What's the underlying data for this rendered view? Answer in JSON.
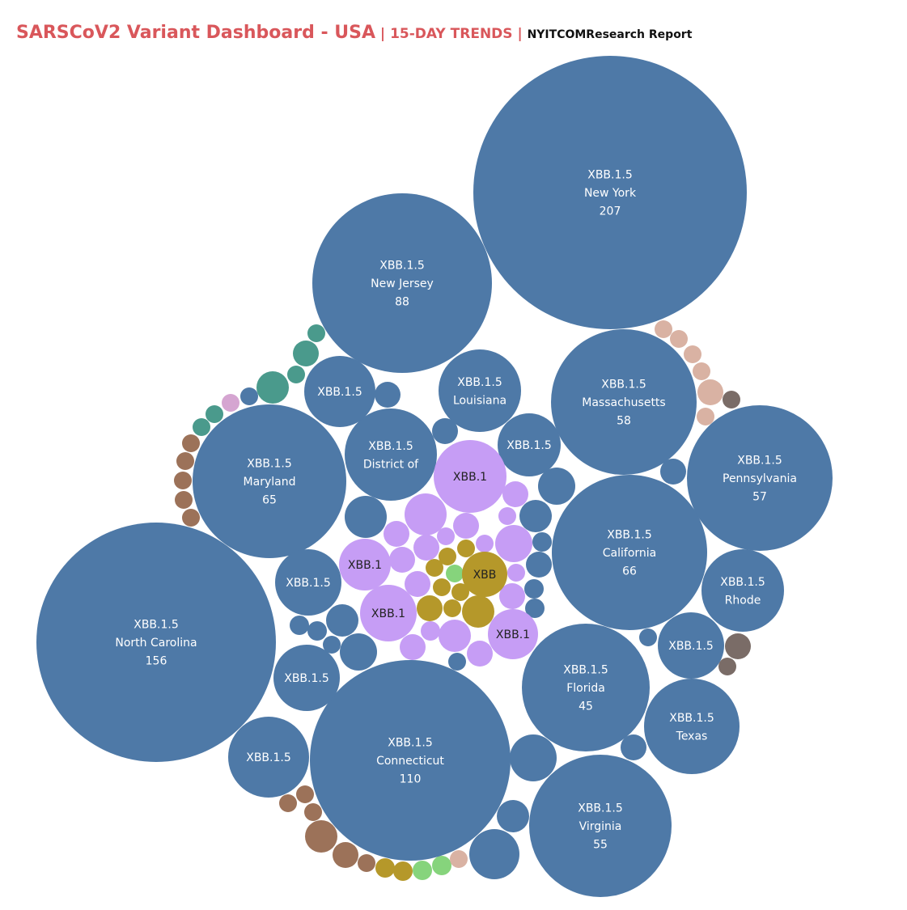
{
  "header": {
    "title": "SARSCoV2 Variant Dashboard - USA",
    "sep1": " | ",
    "subtitle": "15-DAY TRENDS",
    "sep2": " | ",
    "source": "NYITCOMResearch Report"
  },
  "colors": {
    "XBB.1.5": "#4e79a7",
    "XBB.1": "#c69df5",
    "XBB": "#b5982a",
    "teal": "#4a9a8c",
    "brown": "#9c7259",
    "peach": "#d9b2a3",
    "gray": "#7a6c67",
    "green": "#86d47c",
    "pink": "#d5a5d1",
    "light_text": "#ffffff",
    "dark_text": "#222222"
  },
  "chart_data": {
    "type": "packed-bubble",
    "title": "SARSCoV2 Variant Dashboard - USA",
    "size_measure": "count",
    "color_legend": "variant",
    "bubbles": [
      {
        "variant": "XBB.1.5",
        "state": "New York",
        "value": 207
      },
      {
        "variant": "XBB.1.5",
        "state": "North Carolina",
        "value": 156
      },
      {
        "variant": "XBB.1.5",
        "state": "Connecticut",
        "value": 110
      },
      {
        "variant": "XBB.1.5",
        "state": "New Jersey",
        "value": 88
      },
      {
        "variant": "XBB.1.5",
        "state": "California",
        "value": 66
      },
      {
        "variant": "XBB.1.5",
        "state": "Maryland",
        "value": 65
      },
      {
        "variant": "XBB.1.5",
        "state": "Massachusetts",
        "value": 58
      },
      {
        "variant": "XBB.1.5",
        "state": "Pennsylvania",
        "value": 57
      },
      {
        "variant": "XBB.1.5",
        "state": "Virginia",
        "value": 55
      },
      {
        "variant": "XBB.1.5",
        "state": "Florida",
        "value": 45
      },
      {
        "variant": "XBB.1.5",
        "state": "Texas",
        "value": null
      },
      {
        "variant": "XBB.1.5",
        "state": "Rhode",
        "value": null
      },
      {
        "variant": "XBB.1.5",
        "state": "Louisiana",
        "value": null
      },
      {
        "variant": "XBB.1.5",
        "state": "District of",
        "value": null
      },
      {
        "variant": "XBB.1.5",
        "state": "",
        "value": null
      },
      {
        "variant": "XBB.1.5",
        "state": "",
        "value": null
      },
      {
        "variant": "XBB.1.5",
        "state": "",
        "value": null
      },
      {
        "variant": "XBB.1.5",
        "state": "",
        "value": null
      },
      {
        "variant": "XBB.1.5",
        "state": "",
        "value": null
      },
      {
        "variant": "XBB.1.5",
        "state": "",
        "value": null
      },
      {
        "variant": "XBB.1",
        "state": "",
        "value": null
      },
      {
        "variant": "XBB.1",
        "state": "",
        "value": null
      },
      {
        "variant": "XBB.1",
        "state": "",
        "value": null
      },
      {
        "variant": "XBB.1",
        "state": "",
        "value": null
      },
      {
        "variant": "XBB",
        "state": "",
        "value": null
      }
    ]
  }
}
